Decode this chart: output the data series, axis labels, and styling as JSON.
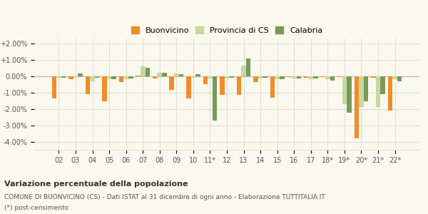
{
  "categories": [
    "02",
    "03",
    "04",
    "05",
    "06",
    "07",
    "08",
    "09",
    "10",
    "11*",
    "12",
    "13",
    "14",
    "15",
    "16",
    "17",
    "18*",
    "19*",
    "20*",
    "21*",
    "22*"
  ],
  "buonvicino": [
    -1.35,
    -0.2,
    -1.1,
    -1.55,
    -0.35,
    0.05,
    -0.15,
    -0.85,
    -1.35,
    -0.5,
    -1.15,
    -1.15,
    -0.35,
    -1.3,
    -0.05,
    -0.1,
    -0.05,
    -0.05,
    -3.8,
    -0.1,
    -2.1
  ],
  "provincia_cs": [
    -0.1,
    -0.1,
    -0.3,
    -0.2,
    -0.2,
    0.6,
    0.2,
    0.15,
    -0.1,
    -0.15,
    -0.15,
    0.65,
    -0.15,
    -0.2,
    -0.15,
    -0.2,
    -0.2,
    -1.7,
    -1.9,
    -1.9,
    -0.2
  ],
  "calabria": [
    -0.1,
    0.15,
    -0.1,
    -0.2,
    -0.15,
    0.5,
    0.2,
    0.1,
    0.1,
    -2.7,
    -0.1,
    1.1,
    -0.1,
    -0.2,
    -0.15,
    -0.15,
    -0.25,
    -2.25,
    -1.55,
    -1.1,
    -0.3
  ],
  "color_buonvicino": "#f28c28",
  "color_provincia": "#c8d8a0",
  "color_calabria": "#7a9a5a",
  "legend_labels": [
    "Buonvicino",
    "Provincia di CS",
    "Calabria"
  ],
  "title_bold": "Variazione percentuale della popolazione",
  "subtitle": "COMUNE DI BUONVICINO (CS) - Dati ISTAT al 31 dicembre di ogni anno - Elaborazione TUTTITALIA.IT",
  "footnote": "(*) post-censimento",
  "ylim": [
    -4.5,
    2.3
  ],
  "yticks": [
    -4.0,
    -3.0,
    -2.0,
    -1.0,
    0.0,
    1.0,
    2.0
  ],
  "ytick_labels": [
    "-4.00%",
    "-3.00%",
    "-2.00%",
    "-1.00%",
    "0.00%",
    "+1.00%",
    "+2.00%"
  ],
  "bg_color": "#f9f9f0",
  "grid_color": "#e0e0d0"
}
